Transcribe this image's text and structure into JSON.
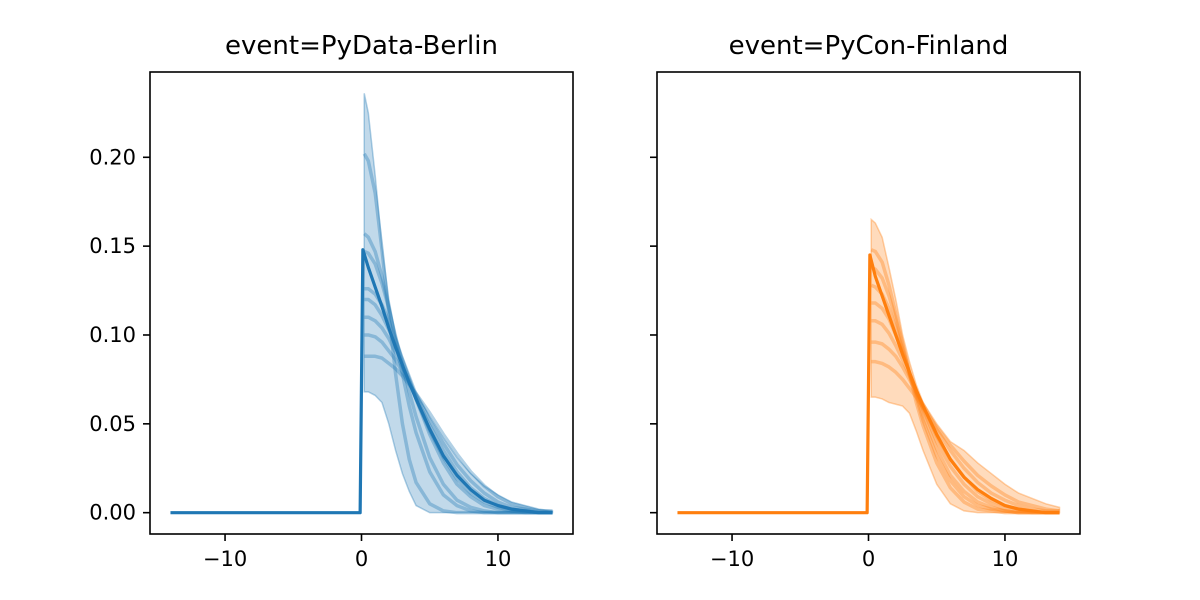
{
  "chart_data": [
    {
      "type": "line",
      "title": "event=PyData-Berlin",
      "color": "#1f77b4",
      "xlim": [
        -15.5,
        15.5
      ],
      "ylim": [
        -0.012,
        0.248
      ],
      "xticks": [
        -10,
        0,
        10
      ],
      "xtick_labels": [
        "−10",
        "0",
        "10"
      ],
      "yticks": [
        0.0,
        0.05,
        0.1,
        0.15,
        0.2
      ],
      "ytick_labels": [
        "0.00",
        "0.05",
        "0.10",
        "0.15",
        "0.20"
      ],
      "show_ytick_labels": true,
      "band": {
        "x": [
          0.2,
          0.5,
          1.0,
          1.5,
          2.0,
          2.5,
          3.0,
          3.5,
          4.0,
          5.0,
          6.0,
          7.0,
          8.0,
          9.0,
          10.0,
          11.0,
          12.0,
          13.0,
          14.0
        ],
        "upper": [
          0.236,
          0.225,
          0.19,
          0.15,
          0.12,
          0.1,
          0.088,
          0.078,
          0.068,
          0.054,
          0.042,
          0.031,
          0.022,
          0.015,
          0.01,
          0.006,
          0.004,
          0.002,
          0.001
        ],
        "lower": [
          0.068,
          0.068,
          0.066,
          0.062,
          0.05,
          0.035,
          0.022,
          0.012,
          0.004,
          0.0,
          0.0,
          0.0,
          0.0,
          0.0,
          0.0,
          0.0,
          0.0,
          0.0,
          0.0
        ]
      },
      "curves_x": [
        0.2,
        0.5,
        1.0,
        1.5,
        2.0,
        2.5,
        3.0,
        3.5,
        4.0,
        5.0,
        6.0,
        7.0,
        8.0,
        9.0,
        10.0,
        11.0,
        12.0,
        13.0,
        14.0
      ],
      "curves": [
        [
          0.202,
          0.198,
          0.18,
          0.148,
          0.112,
          0.078,
          0.05,
          0.03,
          0.017,
          0.005,
          0.001,
          0.0,
          0.0,
          0.0,
          0.0,
          0.0,
          0.0,
          0.0,
          0.0
        ],
        [
          0.157,
          0.155,
          0.147,
          0.133,
          0.116,
          0.097,
          0.078,
          0.06,
          0.045,
          0.023,
          0.01,
          0.004,
          0.001,
          0.0,
          0.0,
          0.0,
          0.0,
          0.0,
          0.0
        ],
        [
          0.147,
          0.146,
          0.14,
          0.129,
          0.115,
          0.099,
          0.083,
          0.068,
          0.054,
          0.031,
          0.016,
          0.007,
          0.003,
          0.001,
          0.0,
          0.0,
          0.0,
          0.0,
          0.0
        ],
        [
          0.126,
          0.126,
          0.123,
          0.117,
          0.108,
          0.097,
          0.086,
          0.075,
          0.064,
          0.044,
          0.028,
          0.016,
          0.009,
          0.004,
          0.002,
          0.001,
          0.0,
          0.0,
          0.0
        ],
        [
          0.12,
          0.12,
          0.117,
          0.111,
          0.103,
          0.094,
          0.084,
          0.074,
          0.064,
          0.046,
          0.031,
          0.019,
          0.011,
          0.006,
          0.003,
          0.001,
          0.001,
          0.0,
          0.0
        ],
        [
          0.11,
          0.11,
          0.108,
          0.104,
          0.098,
          0.09,
          0.082,
          0.074,
          0.065,
          0.049,
          0.035,
          0.023,
          0.014,
          0.008,
          0.004,
          0.002,
          0.001,
          0.0,
          0.0
        ],
        [
          0.1,
          0.1,
          0.099,
          0.096,
          0.091,
          0.086,
          0.079,
          0.073,
          0.066,
          0.052,
          0.039,
          0.027,
          0.018,
          0.011,
          0.006,
          0.003,
          0.002,
          0.001,
          0.0
        ],
        [
          0.088,
          0.088,
          0.088,
          0.087,
          0.084,
          0.081,
          0.077,
          0.072,
          0.067,
          0.056,
          0.044,
          0.033,
          0.023,
          0.015,
          0.009,
          0.005,
          0.003,
          0.001,
          0.001
        ]
      ],
      "main_line": {
        "x": [
          -14,
          -0.1,
          0.1,
          0.5,
          1.0,
          1.5,
          2.0,
          2.5,
          3.0,
          3.5,
          4.0,
          5.0,
          6.0,
          7.0,
          8.0,
          9.0,
          10.0,
          11.0,
          12.0,
          13.0,
          14.0
        ],
        "y": [
          0.0,
          0.0,
          0.148,
          0.138,
          0.127,
          0.116,
          0.104,
          0.093,
          0.083,
          0.073,
          0.064,
          0.047,
          0.032,
          0.021,
          0.013,
          0.007,
          0.004,
          0.002,
          0.001,
          0.0,
          0.0
        ]
      }
    },
    {
      "type": "line",
      "title": "event=PyCon-Finland",
      "color": "#ff7f0e",
      "xlim": [
        -15.5,
        15.5
      ],
      "ylim": [
        -0.012,
        0.248
      ],
      "xticks": [
        -10,
        0,
        10
      ],
      "xtick_labels": [
        "−10",
        "0",
        "10"
      ],
      "yticks": [
        0.0,
        0.05,
        0.1,
        0.15,
        0.2
      ],
      "ytick_labels": [
        "0.00",
        "0.05",
        "0.10",
        "0.15",
        "0.20"
      ],
      "show_ytick_labels": false,
      "band": {
        "x": [
          0.2,
          0.5,
          1.0,
          1.5,
          2.0,
          2.5,
          3.0,
          3.5,
          4.0,
          5.0,
          6.0,
          7.0,
          8.0,
          9.0,
          10.0,
          11.0,
          12.0,
          13.0,
          14.0
        ],
        "upper": [
          0.165,
          0.163,
          0.155,
          0.138,
          0.12,
          0.1,
          0.085,
          0.072,
          0.062,
          0.05,
          0.04,
          0.035,
          0.028,
          0.022,
          0.016,
          0.011,
          0.008,
          0.005,
          0.003
        ],
        "lower": [
          0.065,
          0.065,
          0.064,
          0.062,
          0.061,
          0.06,
          0.056,
          0.046,
          0.035,
          0.016,
          0.005,
          0.001,
          0.0,
          0.0,
          0.0,
          0.0,
          0.0,
          0.0,
          0.0
        ]
      },
      "curves_x": [
        0.2,
        0.5,
        1.0,
        1.5,
        2.0,
        2.5,
        3.0,
        3.5,
        4.0,
        5.0,
        6.0,
        7.0,
        8.0,
        9.0,
        10.0,
        11.0,
        12.0,
        13.0,
        14.0
      ],
      "curves": [
        [
          0.148,
          0.147,
          0.141,
          0.128,
          0.112,
          0.095,
          0.078,
          0.062,
          0.049,
          0.028,
          0.014,
          0.006,
          0.002,
          0.001,
          0.0,
          0.0,
          0.0,
          0.0,
          0.0
        ],
        [
          0.138,
          0.137,
          0.132,
          0.122,
          0.109,
          0.094,
          0.079,
          0.065,
          0.052,
          0.032,
          0.018,
          0.009,
          0.004,
          0.002,
          0.001,
          0.0,
          0.0,
          0.0,
          0.0
        ],
        [
          0.128,
          0.127,
          0.123,
          0.115,
          0.104,
          0.092,
          0.079,
          0.067,
          0.055,
          0.036,
          0.021,
          0.012,
          0.006,
          0.003,
          0.001,
          0.0,
          0.0,
          0.0,
          0.0
        ],
        [
          0.118,
          0.118,
          0.115,
          0.109,
          0.1,
          0.09,
          0.079,
          0.068,
          0.058,
          0.04,
          0.026,
          0.016,
          0.009,
          0.005,
          0.002,
          0.001,
          0.0,
          0.0,
          0.0
        ],
        [
          0.108,
          0.108,
          0.106,
          0.101,
          0.094,
          0.086,
          0.077,
          0.068,
          0.059,
          0.043,
          0.03,
          0.02,
          0.012,
          0.007,
          0.004,
          0.002,
          0.001,
          0.0,
          0.0
        ],
        [
          0.096,
          0.096,
          0.095,
          0.092,
          0.088,
          0.082,
          0.075,
          0.068,
          0.061,
          0.047,
          0.035,
          0.025,
          0.017,
          0.011,
          0.007,
          0.004,
          0.002,
          0.001,
          0.001
        ],
        [
          0.085,
          0.085,
          0.084,
          0.082,
          0.079,
          0.075,
          0.07,
          0.065,
          0.059,
          0.048,
          0.038,
          0.029,
          0.021,
          0.015,
          0.01,
          0.006,
          0.004,
          0.002,
          0.001
        ]
      ],
      "main_line": {
        "x": [
          -14,
          -0.1,
          0.1,
          0.5,
          1.0,
          1.5,
          2.0,
          2.5,
          3.0,
          3.5,
          4.0,
          5.0,
          6.0,
          7.0,
          8.0,
          9.0,
          10.0,
          11.0,
          12.0,
          13.0,
          14.0
        ],
        "y": [
          0.0,
          0.0,
          0.145,
          0.133,
          0.122,
          0.111,
          0.1,
          0.089,
          0.079,
          0.069,
          0.06,
          0.044,
          0.03,
          0.02,
          0.013,
          0.008,
          0.004,
          0.002,
          0.001,
          0.0,
          0.0
        ]
      }
    }
  ]
}
